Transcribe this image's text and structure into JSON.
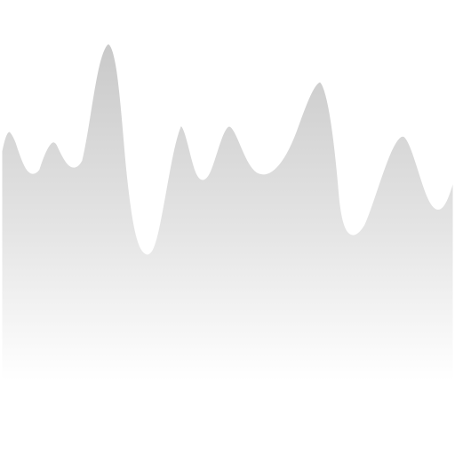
{
  "scene": {
    "background_color": "#ffffff",
    "fill_top_color": "#c9c9c9",
    "fill_bottom_color": "#ffffff",
    "outline_color": "#ffffff",
    "shadow_color": "#e6e6e6"
  }
}
